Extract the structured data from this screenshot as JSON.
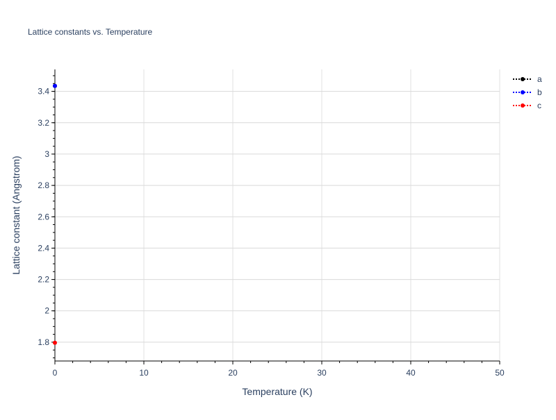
{
  "chart_data": {
    "type": "line",
    "title": "Lattice constants vs. Temperature",
    "xlabel": "Temperature (K)",
    "ylabel": "Lattice constant (Angstrom)",
    "xlim": [
      0,
      50
    ],
    "ylim": [
      1.68,
      3.54
    ],
    "xticks": [
      0,
      10,
      20,
      30,
      40,
      50
    ],
    "yticks": [
      1.8,
      2,
      2.2,
      2.4,
      2.6,
      2.8,
      3,
      3.2,
      3.4
    ],
    "ytick_labels": [
      "1.8",
      "2",
      "2.2",
      "2.4",
      "2.6",
      "2.8",
      "3",
      "3.2",
      "3.4"
    ],
    "grid": true,
    "legend_position": "top-right",
    "series": [
      {
        "name": "a",
        "color": "#000000",
        "x": [
          0
        ],
        "y": [
          3.435
        ]
      },
      {
        "name": "b",
        "color": "#0000ff",
        "x": [
          0
        ],
        "y": [
          3.435
        ]
      },
      {
        "name": "c",
        "color": "#ff0000",
        "x": [
          0
        ],
        "y": [
          1.796
        ]
      }
    ]
  }
}
